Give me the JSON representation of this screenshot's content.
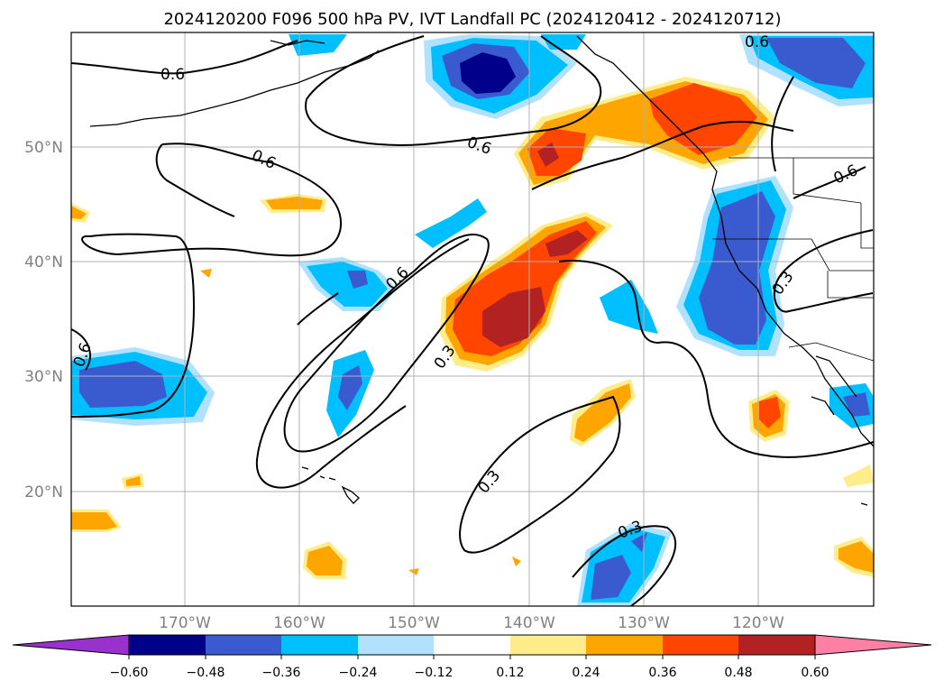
{
  "title": "2024120200 F096 500 hPa PV, IVT Landfall PC (2024120412 - 2024120712)",
  "lat_labels": [
    "50°N",
    "40°N",
    "30°N",
    "20°N"
  ],
  "lon_labels": [
    "170°W",
    "160°W",
    "150°W",
    "140°W",
    "130°W",
    "120°W"
  ],
  "contour_labels": [
    "0.6",
    "0.6",
    "0.6",
    "0.6",
    "0.6",
    "0.6",
    "0.6",
    "0.3",
    "0.3",
    "0.3",
    "0.3"
  ],
  "colorbar": {
    "ticks": [
      "−0.60",
      "−0.48",
      "−0.36",
      "−0.24",
      "−0.12",
      "0.12",
      "0.24",
      "0.36",
      "0.48",
      "0.60"
    ],
    "colors": [
      "#9932cc",
      "#00008b",
      "#3a5bd0",
      "#00bfff",
      "#b0e2ff",
      "#ffffff",
      "#ffec8b",
      "#ffa500",
      "#ff4500",
      "#b22222",
      "#ff7fa5"
    ]
  },
  "colors": {
    "deep_blue": "#00008b",
    "mid_blue": "#3a5bd0",
    "sky_blue": "#00bfff",
    "light_blue": "#b0e2ff",
    "light_yellow": "#ffec8b",
    "orange": "#ffa500",
    "red_orange": "#ff4500",
    "dark_red": "#b22222"
  }
}
